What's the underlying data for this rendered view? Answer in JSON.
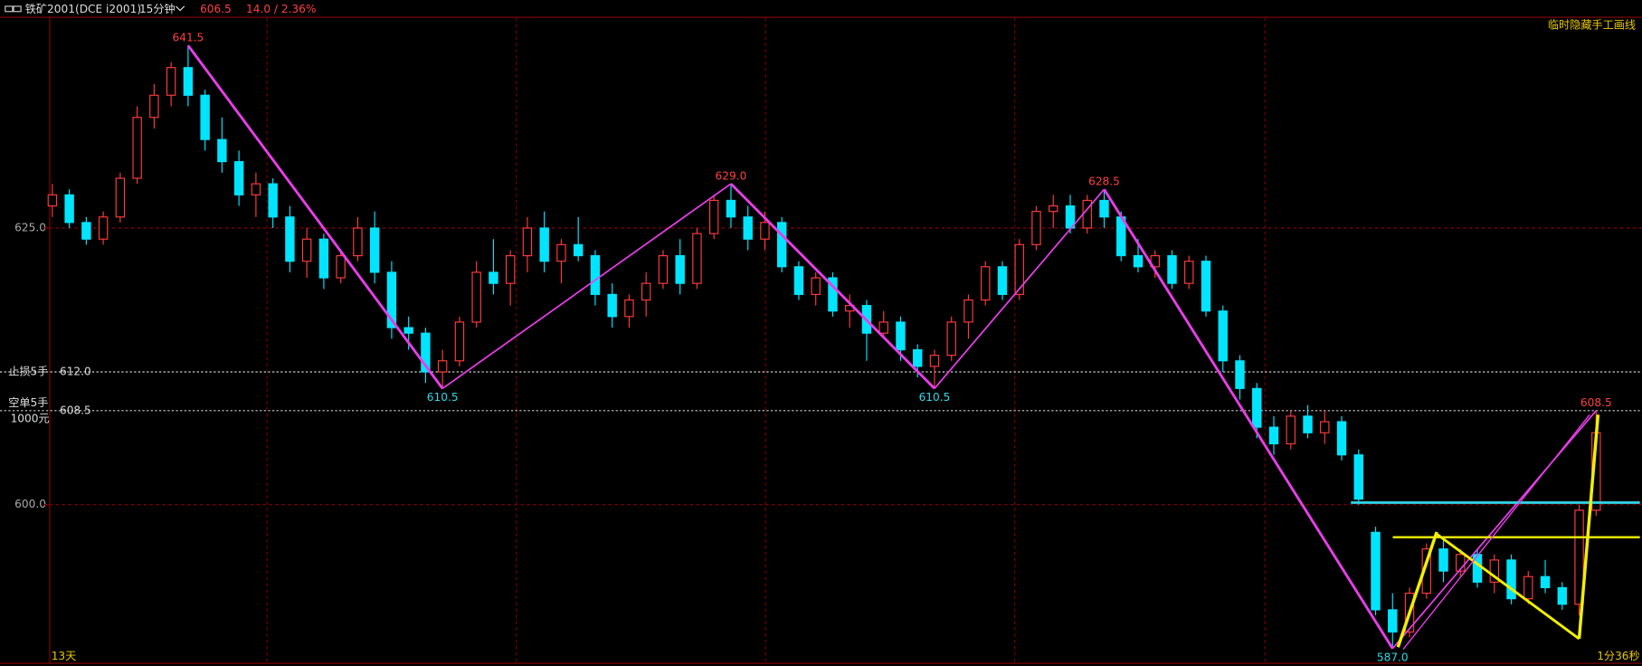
{
  "chart_data": {
    "type": "candlestick",
    "header": {
      "symbol": "铁矿2001(DCE i2001)",
      "period": "15分钟",
      "last": 606.5,
      "change": "14.0 / 2.36%"
    },
    "corner_note": "临时隐藏手工画线",
    "left_footer": "13天",
    "right_footer": "1分36秒",
    "categories": [
      null,
      null,
      null,
      null,
      null,
      null,
      null,
      null,
      null,
      null,
      null,
      null,
      null,
      null,
      null,
      null,
      null,
      null,
      null,
      null,
      null,
      null,
      null,
      null,
      null,
      null,
      null,
      null,
      null,
      null,
      null,
      null,
      null,
      null,
      null,
      null,
      null,
      null,
      null,
      null,
      null,
      null,
      null,
      null,
      null,
      null,
      null,
      null,
      null,
      null,
      null,
      null,
      null,
      null,
      null,
      null,
      null,
      null,
      null,
      null,
      null,
      null,
      null,
      null,
      null,
      null,
      null,
      null,
      null,
      null,
      null,
      null,
      null,
      null,
      null,
      null,
      null,
      null,
      null,
      null,
      null,
      null,
      null,
      null,
      null,
      null,
      null,
      null,
      null,
      null,
      null,
      null
    ],
    "open": [
      627,
      628,
      625.5,
      624,
      626,
      629.5,
      635,
      637,
      639.5,
      637,
      633,
      631,
      628,
      629,
      626,
      622,
      624,
      620.5,
      622.5,
      625,
      621,
      616,
      615.5,
      612,
      613,
      616.5,
      621,
      620,
      622.5,
      625,
      622,
      623.5,
      622.5,
      619,
      617,
      618.5,
      620,
      622.5,
      620,
      624.5,
      627.5,
      626,
      624,
      625.5,
      621.5,
      619,
      620.5,
      617.5,
      618,
      615.5,
      616.5,
      614,
      612.5,
      613.5,
      616.5,
      618.5,
      621.5,
      619,
      623.5,
      626.5,
      627,
      625,
      627.5,
      626,
      622.5,
      621.5,
      622.5,
      620,
      622,
      617.5,
      613,
      610.5,
      607,
      605.5,
      608,
      606.5,
      607.5,
      604.5,
      597.5,
      590.5,
      588.5,
      592,
      596,
      594,
      595.5,
      593,
      595,
      591.5,
      593.5,
      592.5,
      591,
      599.5
    ],
    "high": [
      629,
      628.5,
      626,
      626.5,
      630,
      636,
      638,
      640,
      641.5,
      637.5,
      635,
      632,
      630,
      629.5,
      627,
      625,
      624.5,
      623,
      626,
      626.5,
      622,
      617,
      616,
      614,
      617,
      622,
      624,
      623,
      626,
      626.5,
      624,
      626,
      623,
      620,
      619,
      621,
      623,
      624,
      625,
      628,
      629,
      627,
      626.5,
      626,
      622,
      621,
      621,
      619,
      618.5,
      617.5,
      617,
      614.5,
      614,
      617,
      619,
      622,
      622,
      624,
      627,
      628,
      628,
      628,
      628.5,
      626.5,
      624,
      623,
      623,
      622.5,
      622.5,
      618,
      613.5,
      611,
      608,
      608.5,
      609,
      608.5,
      608,
      605,
      598,
      592,
      592.5,
      596.5,
      597,
      596,
      596,
      595.5,
      595.5,
      594,
      595,
      593,
      600,
      608.5
    ],
    "low": [
      626,
      625,
      623.5,
      623.5,
      625.5,
      629,
      634,
      636,
      636,
      632,
      630,
      627,
      626,
      625,
      621,
      620.5,
      619.5,
      620,
      622,
      620,
      615,
      614,
      611,
      610.5,
      612.5,
      616,
      619,
      618,
      621,
      621,
      620,
      622,
      618,
      616,
      616,
      617,
      619.5,
      619,
      619.5,
      624,
      625,
      623,
      623,
      621,
      618.5,
      618,
      617,
      616,
      613,
      615,
      613,
      611.5,
      610.5,
      613,
      615,
      618,
      618.5,
      618.5,
      623,
      625,
      624.5,
      624.5,
      625,
      622,
      621,
      620.5,
      619.5,
      619.5,
      617,
      612,
      609.5,
      606,
      604.5,
      605,
      606,
      605.5,
      604,
      600,
      590,
      587,
      588,
      591.5,
      593,
      593.5,
      592.5,
      592,
      591,
      591,
      592,
      590.5,
      590,
      599
    ],
    "close": [
      628,
      625.5,
      624,
      626,
      629.5,
      635,
      637,
      639.5,
      637,
      633,
      631,
      628,
      629,
      626,
      622,
      624,
      620.5,
      622.5,
      625,
      621,
      616,
      615.5,
      612,
      613,
      616.5,
      621,
      620,
      622.5,
      625,
      622,
      623.5,
      622.5,
      619,
      617,
      618.5,
      620,
      622.5,
      620,
      624.5,
      627.5,
      626,
      624,
      625.5,
      621.5,
      619,
      620.5,
      617.5,
      618,
      615.5,
      616.5,
      614,
      612.5,
      613.5,
      616.5,
      618.5,
      621.5,
      619,
      623.5,
      626.5,
      627,
      625,
      627.5,
      626,
      622.5,
      621.5,
      622.5,
      620,
      622,
      617.5,
      613,
      610.5,
      607,
      605.5,
      608,
      606.5,
      607.5,
      604.5,
      600.5,
      590.5,
      588.5,
      592,
      596,
      594,
      595.5,
      593,
      595,
      591.5,
      593.5,
      592.5,
      591,
      599.5,
      606.5
    ],
    "up_color": "#ff3c3c",
    "down_color": "#00e5ff",
    "zigzag_color": "#e83ee8",
    "ylim": [
      585.8,
      644.0
    ],
    "yticks": [
      {
        "value": 625,
        "label": "625.0"
      },
      {
        "value": 600,
        "label": "600.0"
      }
    ],
    "grid": true,
    "price_lines": [
      {
        "value": 612,
        "label": "612.0",
        "tag": "止损5手"
      },
      {
        "value": 608.5,
        "label": "608.5",
        "tag": "空单5手",
        "note": "1000元"
      }
    ],
    "pivots": [
      {
        "value": 641.5,
        "label": "641.5"
      },
      {
        "value": 610.5,
        "label": "610.5"
      },
      {
        "value": 629,
        "label": "629.0"
      },
      {
        "value": 610.5,
        "label": "610.5"
      },
      {
        "value": 628.5,
        "label": "628.5"
      },
      {
        "value": 587,
        "label": "587.0"
      },
      {
        "value": 608.5,
        "label": "608.5"
      }
    ]
  }
}
